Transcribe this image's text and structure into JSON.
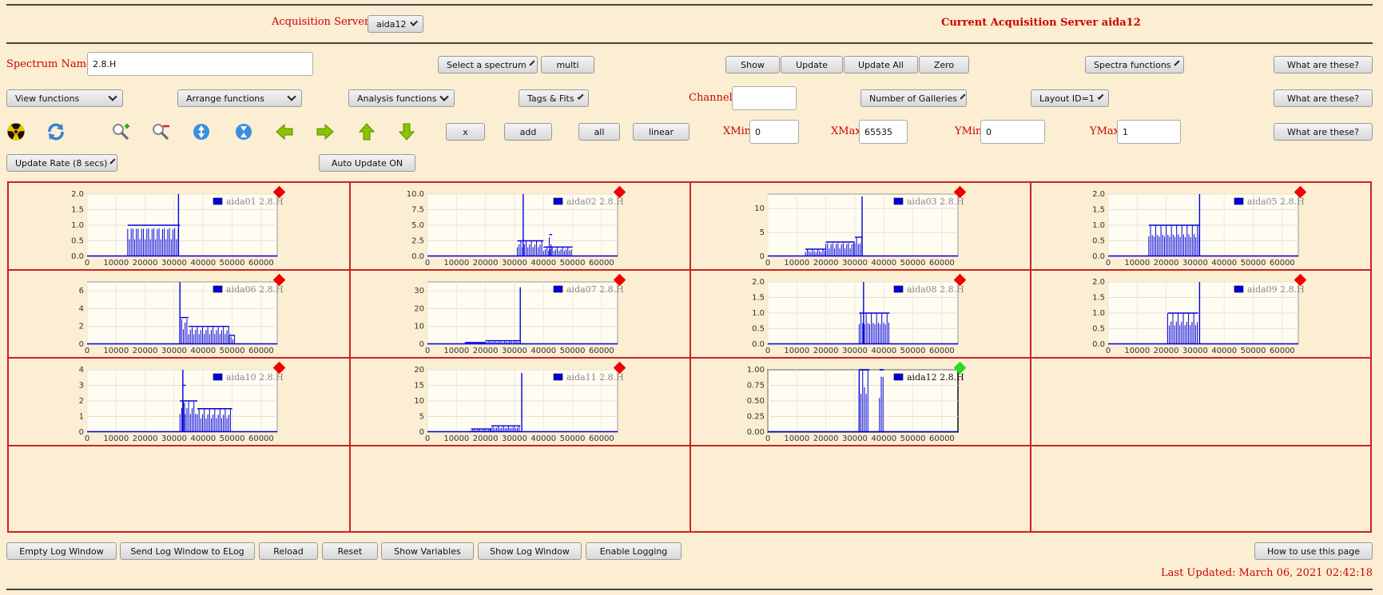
{
  "header": {
    "servers_label": "Acquisition Servers",
    "server_select": "aida12",
    "current_label": "Current Acquisition Server aida12"
  },
  "row1": {
    "spectrum_name_label": "Spectrum Name:",
    "spectrum_name_value": "2.8.H",
    "select_spectrum": "Select a spectrum",
    "multi": "multi",
    "show": "Show",
    "update": "Update",
    "update_all": "Update All",
    "zero": "Zero",
    "spectra_functions": "Spectra functions",
    "what": "What are these?"
  },
  "row2": {
    "view_functions": "View functions",
    "arrange_functions": "Arrange functions",
    "analysis_functions": "Analysis functions",
    "tags_fits": "Tags & Fits",
    "channel_label": "Channel:",
    "channel_value": "",
    "number_of_galleries": "Number of Galleries",
    "layout": "Layout ID=1",
    "what": "What are these?"
  },
  "row3": {
    "icons": [
      "radiation-icon",
      "refresh-icon",
      "zoom-in-icon",
      "zoom-out-icon",
      "expand-vertical-icon",
      "compress-vertical-icon",
      "arrow-left-icon",
      "arrow-right-icon",
      "arrow-up-icon",
      "arrow-down-icon"
    ],
    "x": "x",
    "add": "add",
    "all": "all",
    "linear": "linear",
    "xmin_label": "XMin",
    "xmin_value": "0",
    "xmax_label": "XMax",
    "xmax_value": "65535",
    "ymin_label": "YMin",
    "ymin_value": "0",
    "ymax_label": "YMax",
    "ymax_value": "1",
    "what": "What are these?"
  },
  "row4": {
    "update_rate": "Update Rate (8 secs)",
    "auto_update": "Auto Update ON"
  },
  "colors": {
    "accent_red": "#cc0000",
    "grid_border": "#cc2222",
    "series_blue": "#0000dd",
    "status_red": "#ee0000",
    "status_green": "#22dd22",
    "background": "#fbeed2"
  },
  "chart_data": [
    {
      "type": "bar",
      "title": "",
      "legend": "aida01 2.8.H",
      "status": "red",
      "ylim": [
        0,
        2.0
      ],
      "yticks": [
        "0.0",
        "0.5",
        "1.0",
        "1.5",
        "2.0"
      ],
      "xlim": [
        0,
        65535
      ],
      "xticks": [
        "0",
        "10000",
        "20000",
        "30000",
        "40000",
        "50000",
        "60000"
      ],
      "segments": [
        {
          "x0": 14000,
          "x1": 32000,
          "y": 1.0
        }
      ],
      "spike": {
        "x": 31500,
        "y": 2.0
      }
    },
    {
      "type": "bar",
      "title": "",
      "legend": "aida02 2.8.H",
      "status": "red",
      "ylim": [
        0,
        10.0
      ],
      "yticks": [
        "0.0",
        "2.5",
        "5.0",
        "7.5",
        "10.0"
      ],
      "xlim": [
        0,
        65535
      ],
      "xticks": [
        "0",
        "10000",
        "20000",
        "30000",
        "40000",
        "50000",
        "60000"
      ],
      "segments": [
        {
          "x0": 31000,
          "x1": 40000,
          "y": 2.5
        },
        {
          "x0": 40000,
          "x1": 50000,
          "y": 1.5
        },
        {
          "x0": 42000,
          "x1": 43000,
          "y": 3.5
        }
      ],
      "spike": {
        "x": 33000,
        "y": 10.0
      }
    },
    {
      "type": "bar",
      "title": "",
      "legend": "aida03 2.8.H",
      "status": "red",
      "ylim": [
        0,
        13
      ],
      "yticks": [
        "0",
        "5",
        "10"
      ],
      "xlim": [
        0,
        65535
      ],
      "xticks": [
        "0",
        "10000",
        "20000",
        "30000",
        "40000",
        "50000",
        "60000"
      ],
      "segments": [
        {
          "x0": 13000,
          "x1": 20000,
          "y": 1.5
        },
        {
          "x0": 20000,
          "x1": 30000,
          "y": 3.0
        },
        {
          "x0": 30000,
          "x1": 32500,
          "y": 4.0
        }
      ],
      "spike": {
        "x": 32500,
        "y": 12.5
      }
    },
    {
      "type": "bar",
      "title": "",
      "legend": "aida05 2.8.H",
      "status": "red",
      "ylim": [
        0,
        2.0
      ],
      "yticks": [
        "0.0",
        "0.5",
        "1.0",
        "1.5",
        "2.0"
      ],
      "xlim": [
        0,
        65535
      ],
      "xticks": [
        "0",
        "10000",
        "20000",
        "30000",
        "40000",
        "50000",
        "60000"
      ],
      "segments": [
        {
          "x0": 14000,
          "x1": 31500,
          "y": 1.0
        }
      ],
      "spike": {
        "x": 31500,
        "y": 2.0
      }
    },
    {
      "type": "bar",
      "title": "",
      "legend": "aida06 2.8.H",
      "status": "red",
      "ylim": [
        0,
        7
      ],
      "yticks": [
        "0",
        "2",
        "4",
        "6"
      ],
      "xlim": [
        0,
        65535
      ],
      "xticks": [
        "0",
        "10000",
        "20000",
        "30000",
        "40000",
        "50000",
        "60000"
      ],
      "segments": [
        {
          "x0": 32000,
          "x1": 35000,
          "y": 3.0
        },
        {
          "x0": 35000,
          "x1": 49000,
          "y": 2.0
        },
        {
          "x0": 49000,
          "x1": 51000,
          "y": 1.0
        }
      ],
      "spike": {
        "x": 32000,
        "y": 7.0
      }
    },
    {
      "type": "bar",
      "title": "",
      "legend": "aida07 2.8.H",
      "status": "red",
      "ylim": [
        0,
        35
      ],
      "yticks": [
        "0",
        "10",
        "20",
        "30"
      ],
      "xlim": [
        0,
        65535
      ],
      "xticks": [
        "0",
        "10000",
        "20000",
        "30000",
        "40000",
        "50000",
        "60000"
      ],
      "segments": [
        {
          "x0": 13000,
          "x1": 20000,
          "y": 1.0
        },
        {
          "x0": 20000,
          "x1": 32000,
          "y": 2.0
        }
      ],
      "spike": {
        "x": 32000,
        "y": 32.0
      }
    },
    {
      "type": "bar",
      "title": "",
      "legend": "aida08 2.8.H",
      "status": "red",
      "ylim": [
        0,
        2.0
      ],
      "yticks": [
        "0.0",
        "0.5",
        "1.0",
        "1.5",
        "2.0"
      ],
      "xlim": [
        0,
        65535
      ],
      "xticks": [
        "0",
        "10000",
        "20000",
        "30000",
        "40000",
        "50000",
        "60000"
      ],
      "segments": [
        {
          "x0": 31500,
          "x1": 42000,
          "y": 1.0
        }
      ],
      "spike": {
        "x": 33000,
        "y": 2.0
      }
    },
    {
      "type": "bar",
      "title": "",
      "legend": "aida09 2.8.H",
      "status": "red",
      "ylim": [
        0,
        2.0
      ],
      "yticks": [
        "0.0",
        "0.5",
        "1.0",
        "1.5",
        "2.0"
      ],
      "xlim": [
        0,
        65535
      ],
      "xticks": [
        "0",
        "10000",
        "20000",
        "30000",
        "40000",
        "50000",
        "60000"
      ],
      "segments": [
        {
          "x0": 20500,
          "x1": 31000,
          "y": 1.0
        }
      ],
      "spike": {
        "x": 31500,
        "y": 2.0
      }
    },
    {
      "type": "bar",
      "title": "",
      "legend": "aida10 2.8.H",
      "status": "red",
      "ylim": [
        0,
        4
      ],
      "yticks": [
        "0",
        "1",
        "2",
        "3",
        "4"
      ],
      "xlim": [
        0,
        65535
      ],
      "xticks": [
        "0",
        "10000",
        "20000",
        "30000",
        "40000",
        "50000",
        "60000"
      ],
      "segments": [
        {
          "x0": 32000,
          "x1": 38000,
          "y": 2.0
        },
        {
          "x0": 38000,
          "x1": 50000,
          "y": 1.5
        },
        {
          "x0": 33000,
          "x1": 34000,
          "y": 3.0
        }
      ],
      "spike": {
        "x": 33000,
        "y": 4.0
      }
    },
    {
      "type": "bar",
      "title": "",
      "legend": "aida11 2.8.H",
      "status": "red",
      "ylim": [
        0,
        20
      ],
      "yticks": [
        "0",
        "5",
        "10",
        "15",
        "20"
      ],
      "xlim": [
        0,
        65535
      ],
      "xticks": [
        "0",
        "10000",
        "20000",
        "30000",
        "40000",
        "50000",
        "60000"
      ],
      "segments": [
        {
          "x0": 15000,
          "x1": 22000,
          "y": 1.0
        },
        {
          "x0": 22000,
          "x1": 32000,
          "y": 2.0
        }
      ],
      "spike": {
        "x": 32500,
        "y": 19.0
      }
    },
    {
      "type": "bar",
      "title": "",
      "legend": "aida12 2.8.H",
      "status": "green",
      "ylim": [
        0,
        1.0
      ],
      "yticks": [
        "0.00",
        "0.25",
        "0.50",
        "0.75",
        "1.00"
      ],
      "xlim": [
        0,
        65535
      ],
      "xticks": [
        "0",
        "10000",
        "20000",
        "30000",
        "40000",
        "50000",
        "60000"
      ],
      "segments": [
        {
          "x0": 31500,
          "x1": 35000,
          "y": 1.0
        },
        {
          "x0": 38500,
          "x1": 40000,
          "y": 1.0
        }
      ],
      "spike": {
        "x": 31500,
        "y": 1.0
      }
    }
  ],
  "footer": {
    "empty_log": "Empty Log Window",
    "send_log": "Send Log Window to ELog",
    "reload": "Reload",
    "reset": "Reset",
    "show_variables": "Show Variables",
    "show_log": "Show Log Window",
    "enable_logging": "Enable Logging",
    "how_to": "How to use this page",
    "last_updated": "Last Updated: March 06, 2021 02:42:18"
  }
}
